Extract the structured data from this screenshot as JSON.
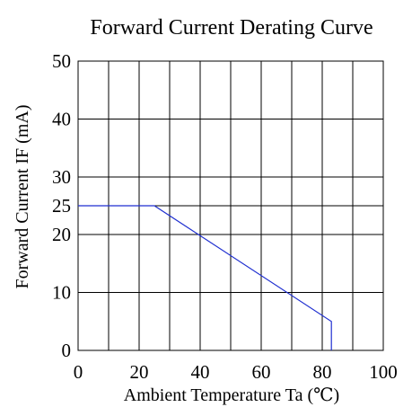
{
  "chart_data": {
    "type": "line",
    "title": "Forward Current Derating Curve",
    "xlabel": "Ambient Temperature Ta (℃)",
    "ylabel": "Forward Current IF (mA)",
    "xlim": [
      0,
      100
    ],
    "ylim": [
      0,
      50
    ],
    "x_ticks": [
      0,
      20,
      40,
      60,
      80,
      100
    ],
    "y_ticks": [
      0,
      10,
      20,
      25,
      30,
      40,
      50
    ],
    "x_grid": [
      0,
      10,
      20,
      30,
      40,
      50,
      60,
      70,
      80,
      90,
      100
    ],
    "y_grid": [
      0,
      10,
      20,
      25,
      30,
      40,
      50
    ],
    "grid": true,
    "series": [
      {
        "color": "#1f2fd0",
        "x": [
          0,
          25,
          83,
          83,
          83
        ],
        "y": [
          25,
          25,
          5,
          5,
          0
        ]
      }
    ]
  }
}
